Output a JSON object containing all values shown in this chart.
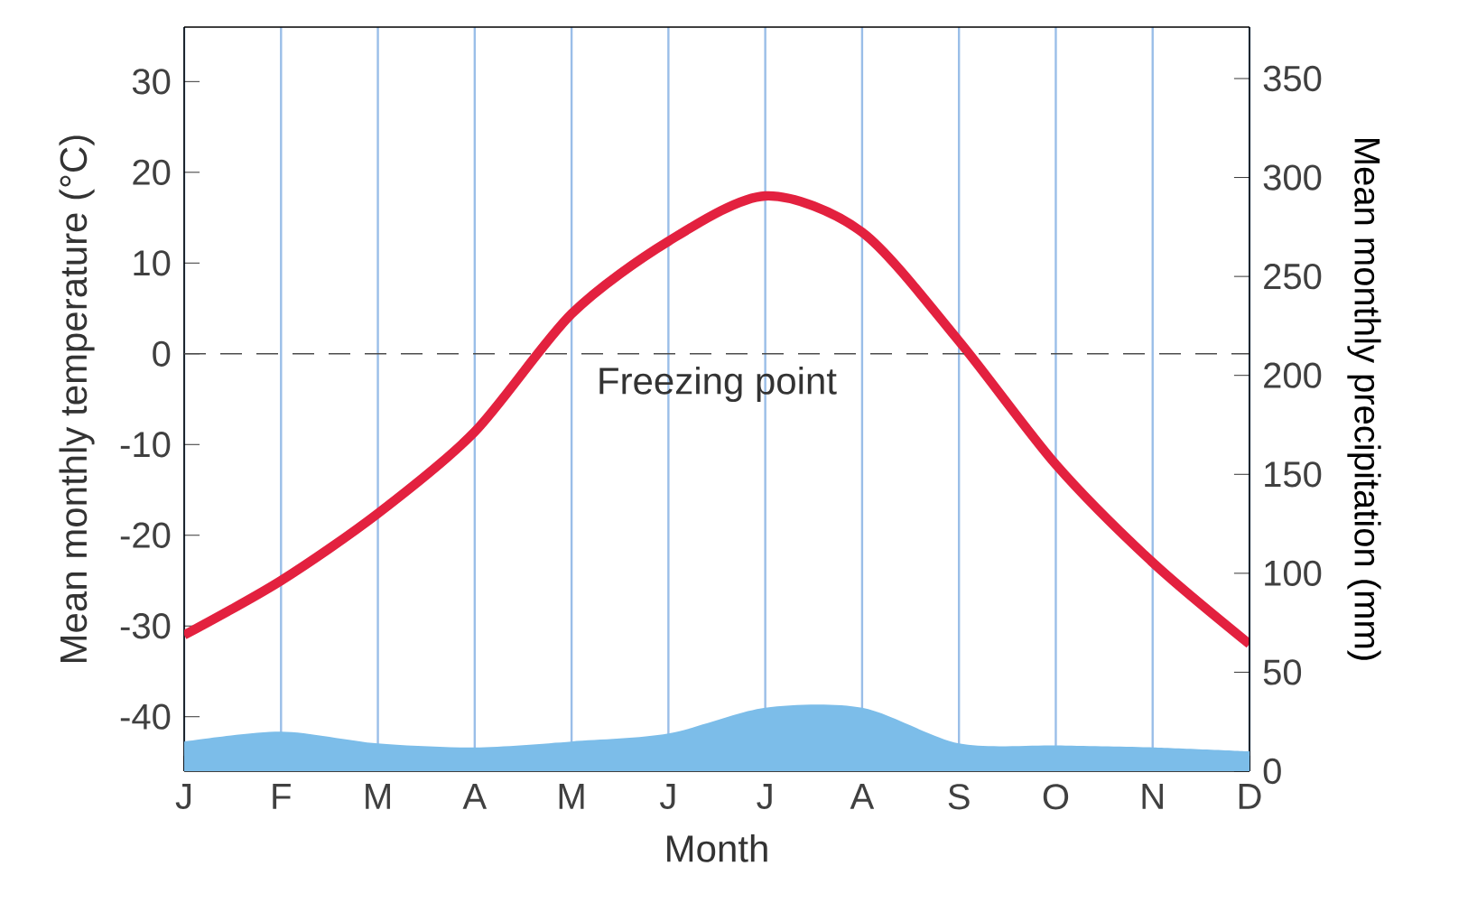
{
  "chart_data": {
    "type": "line",
    "xlabel": "Month",
    "ylabel": "Mean monthly temperature (°C)",
    "y2label": "Mean monthly precipitation (mm)",
    "categories": [
      "J",
      "F",
      "M",
      "A",
      "M",
      "J",
      "J",
      "A",
      "S",
      "O",
      "N",
      "D"
    ],
    "series": [
      {
        "color": "#e3213f",
        "values": [
          -31,
          -25,
          -17.6,
          -8.6,
          4.4,
          12.4,
          17.4,
          13.4,
          1.4,
          -12.2,
          -23,
          -32
        ]
      },
      {
        "type": "area",
        "axis": "y2",
        "color": "#7cbde9",
        "values": [
          15,
          20,
          14,
          12,
          15,
          19,
          32,
          32,
          14,
          13,
          12,
          10
        ]
      }
    ],
    "ylim": [
      -46,
      36
    ],
    "yticks": [
      -40,
      -30,
      -20,
      -10,
      0,
      10,
      20,
      30
    ],
    "y2lim": [
      0,
      376
    ],
    "y2ticks": [
      0,
      50,
      100,
      150,
      200,
      250,
      300,
      350
    ],
    "ref_lines": [
      {
        "axis": "y",
        "value": 0,
        "label": "Freezing point",
        "line_style": "dashed"
      }
    ],
    "grid": "x",
    "legend": false,
    "marker": "none",
    "line_style": "solid"
  }
}
